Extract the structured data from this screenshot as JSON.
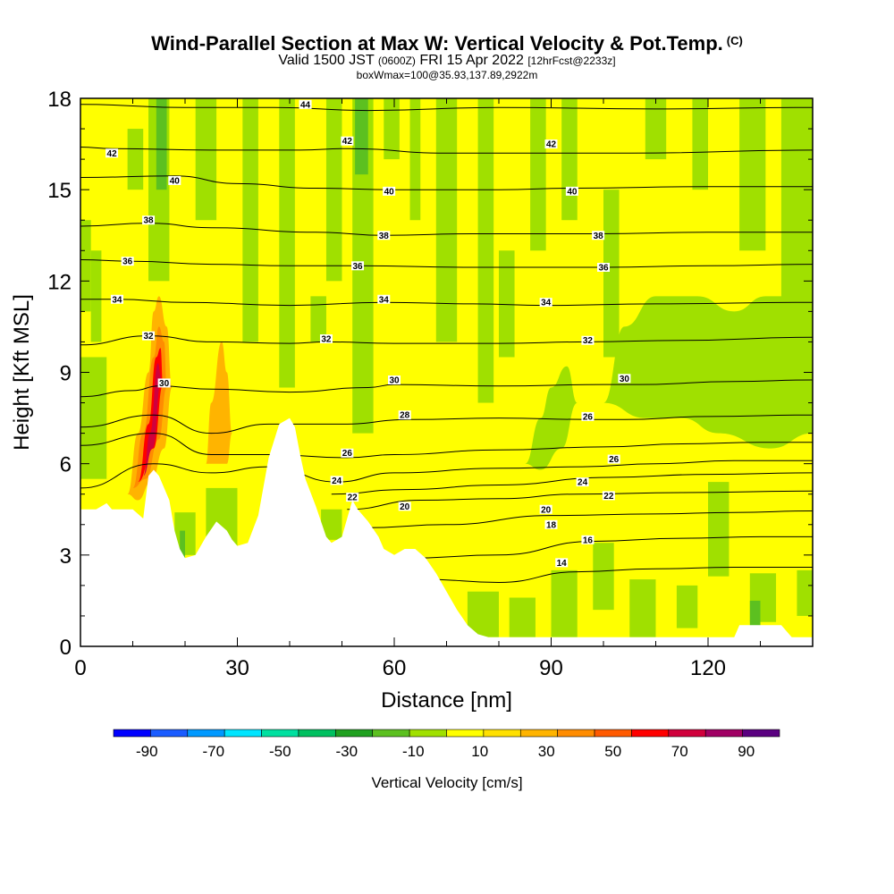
{
  "header": {
    "title": "Wind-Parallel Section at Max W: Vertical Velocity & Pot.Temp.",
    "copyright": "(C)",
    "valid_prefix": "Valid 1500 JST",
    "valid_utc": "(0600Z)",
    "valid_date": "FRI 15 Apr 2022",
    "forecast": "[12hrFcst@2233z]",
    "box_info": "boxWmax=100@35.93,137.89,2922m"
  },
  "chart_data": {
    "type": "heatmap",
    "xlabel": "Distance [nm]",
    "ylabel": "Height [Kft MSL]",
    "xlim": [
      0,
      140
    ],
    "ylim": [
      0,
      18
    ],
    "x_ticks": [
      "0",
      "30",
      "60",
      "90",
      "120"
    ],
    "x_tick_values": [
      0,
      30,
      60,
      90,
      120
    ],
    "y_ticks": [
      "0",
      "3",
      "6",
      "9",
      "12",
      "15",
      "18"
    ],
    "y_tick_values": [
      0,
      3,
      6,
      9,
      12,
      15,
      18
    ],
    "colorbar": {
      "label": "Vertical Velocity [cm/s]",
      "tick_labels": [
        "-90",
        "-70",
        "-50",
        "-30",
        "-10",
        "10",
        "30",
        "50",
        "70",
        "90"
      ],
      "tick_values": [
        -90,
        -70,
        -50,
        -30,
        -10,
        10,
        30,
        50,
        70,
        90
      ],
      "range": [
        -100,
        100
      ],
      "colors": [
        "#0000ff",
        "#1a5cff",
        "#0099ff",
        "#00e5ff",
        "#00e0a0",
        "#00c060",
        "#20a020",
        "#5cc020",
        "#a0e000",
        "#ffff00",
        "#ffe000",
        "#ffb400",
        "#ff8c00",
        "#ff5a00",
        "#ff0000",
        "#d0003c",
        "#a00064",
        "#5a0080"
      ]
    },
    "background_w_range": "-10 to 10",
    "w_max_feature": {
      "x": 15,
      "height_range": [
        5,
        11
      ],
      "peak": 90
    },
    "terrain": [
      [
        0,
        4.5
      ],
      [
        3,
        4.5
      ],
      [
        5,
        4.7
      ],
      [
        6,
        4.5
      ],
      [
        10,
        4.5
      ],
      [
        12,
        4.2
      ],
      [
        13,
        5.6
      ],
      [
        14,
        5.8
      ],
      [
        15,
        5.6
      ],
      [
        16,
        5.2
      ],
      [
        17,
        4.8
      ],
      [
        18,
        3.8
      ],
      [
        19,
        3.2
      ],
      [
        20,
        2.9
      ],
      [
        22,
        3.0
      ],
      [
        24,
        3.6
      ],
      [
        26,
        4.1
      ],
      [
        28,
        3.8
      ],
      [
        29,
        3.5
      ],
      [
        30,
        3.3
      ],
      [
        32,
        3.4
      ],
      [
        34,
        4.3
      ],
      [
        36,
        6.2
      ],
      [
        38,
        7.3
      ],
      [
        40,
        7.5
      ],
      [
        41,
        7.2
      ],
      [
        42,
        6.3
      ],
      [
        43,
        5.5
      ],
      [
        45,
        4.6
      ],
      [
        47,
        3.6
      ],
      [
        48,
        3.4
      ],
      [
        50,
        3.6
      ],
      [
        51,
        4.2
      ],
      [
        52,
        4.8
      ],
      [
        53,
        4.5
      ],
      [
        55,
        4.1
      ],
      [
        57,
        3.6
      ],
      [
        58,
        3.2
      ],
      [
        60,
        3.0
      ],
      [
        62,
        3.2
      ],
      [
        64,
        3.2
      ],
      [
        66,
        2.9
      ],
      [
        68,
        2.4
      ],
      [
        70,
        1.8
      ],
      [
        72,
        1.2
      ],
      [
        74,
        0.7
      ],
      [
        76,
        0.4
      ],
      [
        78,
        0.3
      ],
      [
        80,
        0.3
      ],
      [
        125,
        0.3
      ],
      [
        126,
        0.7
      ],
      [
        134,
        0.7
      ],
      [
        136,
        0.3
      ],
      [
        140,
        0.3
      ]
    ],
    "theta_contours": [
      {
        "label": "14",
        "points": [
          [
            66,
            2.2
          ],
          [
            80,
            2.1
          ],
          [
            95,
            2.45
          ],
          [
            110,
            2.55
          ],
          [
            125,
            2.6
          ],
          [
            140,
            2.6
          ]
        ]
      },
      {
        "label": "16",
        "points": [
          [
            63,
            2.9
          ],
          [
            80,
            3.0
          ],
          [
            98,
            3.45
          ],
          [
            115,
            3.55
          ],
          [
            130,
            3.6
          ],
          [
            140,
            3.6
          ]
        ]
      },
      {
        "label": "18",
        "points": [
          [
            55,
            3.9
          ],
          [
            70,
            4.0
          ],
          [
            90,
            4.3
          ],
          [
            110,
            4.35
          ],
          [
            125,
            4.4
          ],
          [
            140,
            4.45
          ]
        ]
      },
      {
        "label": "20",
        "points": [
          [
            51,
            4.5
          ],
          [
            65,
            4.8
          ],
          [
            80,
            4.85
          ],
          [
            95,
            5.0
          ],
          [
            115,
            5.05
          ],
          [
            140,
            5.1
          ]
        ]
      },
      {
        "label": "22",
        "points": [
          [
            48,
            5.0
          ],
          [
            62,
            5.15
          ],
          [
            80,
            5.3
          ],
          [
            101,
            5.55
          ],
          [
            120,
            5.65
          ],
          [
            140,
            5.7
          ]
        ]
      },
      {
        "label": "24",
        "points": [
          [
            0,
            5.2
          ],
          [
            14,
            6.0
          ],
          [
            25,
            5.7
          ],
          [
            36,
            5.9
          ],
          [
            49,
            5.4
          ],
          [
            60,
            5.7
          ],
          [
            80,
            5.85
          ],
          [
            96,
            5.9
          ],
          [
            110,
            6.0
          ],
          [
            125,
            6.1
          ],
          [
            140,
            6.1
          ]
        ]
      },
      {
        "label": "26",
        "points": [
          [
            0,
            6.6
          ],
          [
            14,
            7.0
          ],
          [
            25,
            6.3
          ],
          [
            36,
            6.3
          ],
          [
            51,
            6.2
          ],
          [
            60,
            6.3
          ],
          [
            80,
            6.45
          ],
          [
            100,
            6.55
          ],
          [
            115,
            6.65
          ],
          [
            130,
            6.7
          ],
          [
            140,
            6.7
          ]
        ]
      },
      {
        "label": "28",
        "points": [
          [
            0,
            7.2
          ],
          [
            14,
            7.6
          ],
          [
            25,
            7.0
          ],
          [
            36,
            7.3
          ],
          [
            50,
            7.3
          ],
          [
            63,
            7.45
          ],
          [
            80,
            7.5
          ],
          [
            98,
            7.45
          ],
          [
            104,
            7.45
          ],
          [
            120,
            7.55
          ],
          [
            140,
            7.6
          ]
        ]
      },
      {
        "label": "30",
        "points": [
          [
            0,
            8.2
          ],
          [
            10,
            8.4
          ],
          [
            15,
            8.55
          ],
          [
            25,
            8.45
          ],
          [
            40,
            8.35
          ],
          [
            55,
            8.5
          ],
          [
            60,
            8.6
          ],
          [
            80,
            8.55
          ],
          [
            100,
            8.6
          ],
          [
            107,
            8.6
          ],
          [
            125,
            8.7
          ],
          [
            140,
            8.75
          ]
        ]
      },
      {
        "label": "32",
        "points": [
          [
            0,
            9.9
          ],
          [
            13,
            10.2
          ],
          [
            25,
            10.0
          ],
          [
            40,
            9.95
          ],
          [
            47,
            10.0
          ],
          [
            60,
            9.95
          ],
          [
            80,
            9.95
          ],
          [
            97,
            10.0
          ],
          [
            115,
            10.05
          ],
          [
            140,
            10.15
          ]
        ]
      },
      {
        "label": "34",
        "points": [
          [
            0,
            11.4
          ],
          [
            7,
            11.4
          ],
          [
            20,
            11.3
          ],
          [
            40,
            11.2
          ],
          [
            58,
            11.3
          ],
          [
            75,
            11.25
          ],
          [
            89,
            11.2
          ],
          [
            110,
            11.25
          ],
          [
            140,
            11.3
          ]
        ]
      },
      {
        "label": "36",
        "points": [
          [
            0,
            12.7
          ],
          [
            10,
            12.65
          ],
          [
            25,
            12.55
          ],
          [
            40,
            12.5
          ],
          [
            53,
            12.5
          ],
          [
            75,
            12.45
          ],
          [
            100,
            12.45
          ],
          [
            120,
            12.5
          ],
          [
            140,
            12.55
          ]
        ]
      },
      {
        "label": "38",
        "points": [
          [
            0,
            13.8
          ],
          [
            13,
            13.9
          ],
          [
            25,
            13.75
          ],
          [
            45,
            13.6
          ],
          [
            58,
            13.5
          ],
          [
            75,
            13.55
          ],
          [
            99,
            13.55
          ],
          [
            120,
            13.6
          ],
          [
            140,
            13.6
          ]
        ]
      },
      {
        "label": "40",
        "points": [
          [
            0,
            15.4
          ],
          [
            18,
            15.45
          ],
          [
            30,
            15.2
          ],
          [
            45,
            15.05
          ],
          [
            60,
            15.0
          ],
          [
            80,
            15.0
          ],
          [
            94,
            15.05
          ],
          [
            120,
            15.1
          ],
          [
            140,
            15.1
          ]
        ]
      },
      {
        "label": "42",
        "points": [
          [
            0,
            16.4
          ],
          [
            6,
            16.35
          ],
          [
            25,
            16.3
          ],
          [
            42,
            16.3
          ],
          [
            51,
            16.35
          ],
          [
            70,
            16.2
          ],
          [
            90,
            16.2
          ],
          [
            105,
            16.2
          ],
          [
            140,
            16.3
          ]
        ]
      },
      {
        "label": "44",
        "points": [
          [
            0,
            17.8
          ],
          [
            20,
            17.7
          ],
          [
            37,
            17.7
          ],
          [
            55,
            17.6
          ],
          [
            80,
            17.7
          ],
          [
            110,
            17.65
          ],
          [
            140,
            17.7
          ]
        ]
      }
    ],
    "label_positions": [
      [
        "14",
        92,
        2.75
      ],
      [
        "16",
        97,
        3.5
      ],
      [
        "18",
        90,
        4.0
      ],
      [
        "20",
        62,
        4.6
      ],
      [
        "20",
        89,
        4.5
      ],
      [
        "22",
        101,
        4.95
      ],
      [
        "22",
        52,
        4.9
      ],
      [
        "24",
        49,
        5.45
      ],
      [
        "24",
        96,
        5.4
      ],
      [
        "26",
        51,
        6.35
      ],
      [
        "26",
        97,
        7.55
      ],
      [
        "26",
        102,
        6.15
      ],
      [
        "28",
        62,
        7.6
      ],
      [
        "30",
        16,
        8.65
      ],
      [
        "30",
        60,
        8.75
      ],
      [
        "30",
        104,
        8.8
      ],
      [
        "32",
        13,
        10.2
      ],
      [
        "32",
        47,
        10.1
      ],
      [
        "32",
        97,
        10.05
      ],
      [
        "34",
        7,
        11.4
      ],
      [
        "34",
        58,
        11.4
      ],
      [
        "34",
        89,
        11.3
      ],
      [
        "36",
        9,
        12.65
      ],
      [
        "36",
        53,
        12.5
      ],
      [
        "36",
        100,
        12.45
      ],
      [
        "38",
        13,
        14.0
      ],
      [
        "38",
        58,
        13.5
      ],
      [
        "38",
        99,
        13.5
      ],
      [
        "40",
        18,
        15.3
      ],
      [
        "40",
        59,
        14.95
      ],
      [
        "40",
        94,
        14.95
      ],
      [
        "42",
        6,
        16.2
      ],
      [
        "42",
        51,
        16.6
      ],
      [
        "42",
        90,
        16.5
      ],
      [
        "44",
        43,
        17.8
      ]
    ]
  }
}
